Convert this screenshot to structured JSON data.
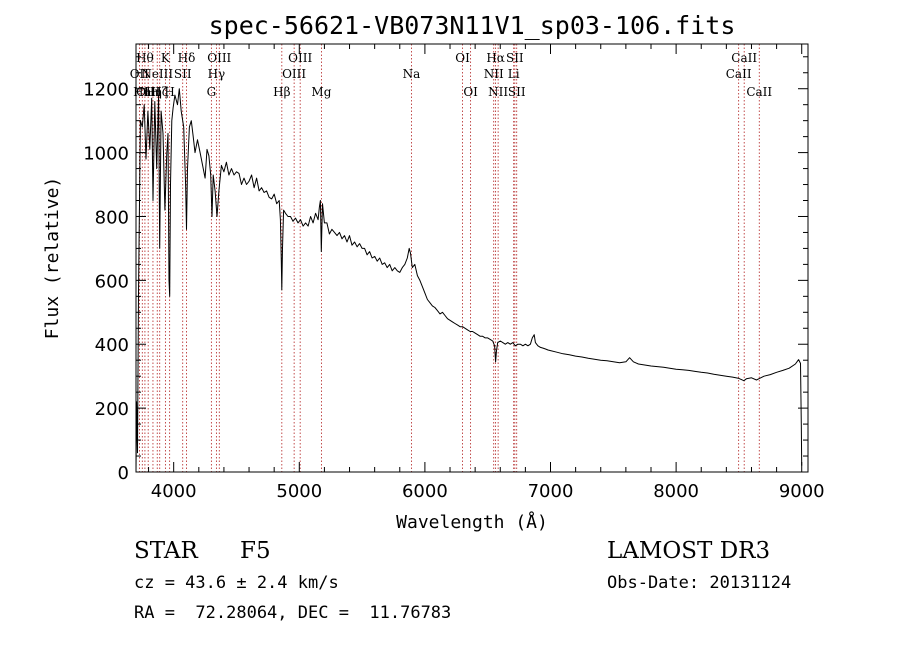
{
  "chart_data": {
    "type": "line",
    "title": "spec-56621-VB073N11V1_sp03-106.fits",
    "xlabel": "Wavelength (Å)",
    "ylabel": "Flux (relative)",
    "xlim": [
      3700,
      9050
    ],
    "ylim": [
      0,
      1340
    ],
    "x_ticks": [
      4000,
      5000,
      6000,
      7000,
      8000,
      9000
    ],
    "y_ticks": [
      0,
      200,
      400,
      600,
      800,
      1000,
      1200
    ],
    "x_tick_labels": [
      "4000",
      "5000",
      "6000",
      "7000",
      "8000",
      "9000"
    ],
    "y_tick_labels": [
      "0",
      "200",
      "400",
      "600",
      "800",
      "1000",
      "1200"
    ],
    "series": [
      {
        "name": "flux",
        "color": "#000000",
        "points": [
          [
            3700,
            0
          ],
          [
            3705,
            220
          ],
          [
            3712,
            60
          ],
          [
            3720,
            560
          ],
          [
            3735,
            1100
          ],
          [
            3750,
            1080
          ],
          [
            3765,
            1150
          ],
          [
            3780,
            980
          ],
          [
            3795,
            1130
          ],
          [
            3810,
            1010
          ],
          [
            3825,
            1170
          ],
          [
            3835,
            850
          ],
          [
            3850,
            1160
          ],
          [
            3865,
            950
          ],
          [
            3880,
            1180
          ],
          [
            3889,
            700
          ],
          [
            3900,
            1130
          ],
          [
            3915,
            1060
          ],
          [
            3930,
            820
          ],
          [
            3945,
            1000
          ],
          [
            3955,
            1060
          ],
          [
            3963,
            600
          ],
          [
            3968,
            550
          ],
          [
            3975,
            900
          ],
          [
            3985,
            1100
          ],
          [
            3995,
            1140
          ],
          [
            4010,
            1180
          ],
          [
            4030,
            1150
          ],
          [
            4045,
            1200
          ],
          [
            4060,
            1130
          ],
          [
            4080,
            1080
          ],
          [
            4095,
            900
          ],
          [
            4102,
            760
          ],
          [
            4110,
            950
          ],
          [
            4125,
            1080
          ],
          [
            4140,
            1100
          ],
          [
            4155,
            1050
          ],
          [
            4170,
            1000
          ],
          [
            4190,
            1040
          ],
          [
            4210,
            1000
          ],
          [
            4230,
            960
          ],
          [
            4250,
            920
          ],
          [
            4265,
            1010
          ],
          [
            4280,
            990
          ],
          [
            4295,
            930
          ],
          [
            4305,
            800
          ],
          [
            4315,
            930
          ],
          [
            4330,
            880
          ],
          [
            4345,
            800
          ],
          [
            4360,
            880
          ],
          [
            4380,
            960
          ],
          [
            4400,
            940
          ],
          [
            4420,
            970
          ],
          [
            4440,
            930
          ],
          [
            4460,
            950
          ],
          [
            4480,
            930
          ],
          [
            4500,
            940
          ],
          [
            4520,
            935
          ],
          [
            4540,
            900
          ],
          [
            4560,
            920
          ],
          [
            4580,
            900
          ],
          [
            4600,
            910
          ],
          [
            4620,
            930
          ],
          [
            4640,
            890
          ],
          [
            4660,
            920
          ],
          [
            4680,
            880
          ],
          [
            4700,
            890
          ],
          [
            4720,
            875
          ],
          [
            4740,
            880
          ],
          [
            4760,
            860
          ],
          [
            4780,
            855
          ],
          [
            4800,
            870
          ],
          [
            4820,
            840
          ],
          [
            4840,
            850
          ],
          [
            4850,
            790
          ],
          [
            4857,
            660
          ],
          [
            4861,
            570
          ],
          [
            4866,
            700
          ],
          [
            4875,
            820
          ],
          [
            4890,
            810
          ],
          [
            4910,
            800
          ],
          [
            4930,
            800
          ],
          [
            4950,
            785
          ],
          [
            4970,
            795
          ],
          [
            4990,
            780
          ],
          [
            5010,
            790
          ],
          [
            5030,
            770
          ],
          [
            5050,
            780
          ],
          [
            5070,
            770
          ],
          [
            5090,
            800
          ],
          [
            5110,
            780
          ],
          [
            5130,
            810
          ],
          [
            5150,
            790
          ],
          [
            5160,
            830
          ],
          [
            5168,
            850
          ],
          [
            5175,
            690
          ],
          [
            5185,
            840
          ],
          [
            5200,
            780
          ],
          [
            5220,
            780
          ],
          [
            5240,
            745
          ],
          [
            5260,
            760
          ],
          [
            5280,
            750
          ],
          [
            5300,
            740
          ],
          [
            5320,
            750
          ],
          [
            5340,
            730
          ],
          [
            5360,
            740
          ],
          [
            5380,
            720
          ],
          [
            5400,
            740
          ],
          [
            5420,
            710
          ],
          [
            5440,
            720
          ],
          [
            5460,
            705
          ],
          [
            5480,
            715
          ],
          [
            5500,
            700
          ],
          [
            5520,
            700
          ],
          [
            5540,
            680
          ],
          [
            5560,
            690
          ],
          [
            5580,
            670
          ],
          [
            5600,
            675
          ],
          [
            5620,
            660
          ],
          [
            5640,
            670
          ],
          [
            5660,
            650
          ],
          [
            5680,
            655
          ],
          [
            5700,
            640
          ],
          [
            5720,
            650
          ],
          [
            5740,
            630
          ],
          [
            5760,
            640
          ],
          [
            5780,
            630
          ],
          [
            5800,
            625
          ],
          [
            5820,
            640
          ],
          [
            5840,
            650
          ],
          [
            5860,
            670
          ],
          [
            5875,
            700
          ],
          [
            5885,
            685
          ],
          [
            5900,
            640
          ],
          [
            5920,
            650
          ],
          [
            5940,
            615
          ],
          [
            5960,
            600
          ],
          [
            5980,
            580
          ],
          [
            6000,
            560
          ],
          [
            6020,
            540
          ],
          [
            6040,
            530
          ],
          [
            6060,
            520
          ],
          [
            6080,
            515
          ],
          [
            6100,
            505
          ],
          [
            6120,
            495
          ],
          [
            6140,
            500
          ],
          [
            6160,
            490
          ],
          [
            6180,
            480
          ],
          [
            6200,
            475
          ],
          [
            6220,
            470
          ],
          [
            6240,
            465
          ],
          [
            6260,
            460
          ],
          [
            6280,
            455
          ],
          [
            6300,
            455
          ],
          [
            6320,
            450
          ],
          [
            6340,
            445
          ],
          [
            6360,
            440
          ],
          [
            6380,
            440
          ],
          [
            6400,
            435
          ],
          [
            6420,
            430
          ],
          [
            6440,
            425
          ],
          [
            6460,
            425
          ],
          [
            6480,
            420
          ],
          [
            6500,
            420
          ],
          [
            6520,
            415
          ],
          [
            6540,
            410
          ],
          [
            6555,
            395
          ],
          [
            6563,
            345
          ],
          [
            6570,
            380
          ],
          [
            6580,
            405
          ],
          [
            6600,
            410
          ],
          [
            6620,
            405
          ],
          [
            6640,
            400
          ],
          [
            6660,
            405
          ],
          [
            6680,
            400
          ],
          [
            6700,
            405
          ],
          [
            6720,
            395
          ],
          [
            6740,
            400
          ],
          [
            6760,
            400
          ],
          [
            6780,
            395
          ],
          [
            6800,
            400
          ],
          [
            6820,
            395
          ],
          [
            6840,
            400
          ],
          [
            6855,
            420
          ],
          [
            6870,
            430
          ],
          [
            6880,
            405
          ],
          [
            6900,
            395
          ],
          [
            6920,
            390
          ],
          [
            6940,
            388
          ],
          [
            6960,
            385
          ],
          [
            6980,
            382
          ],
          [
            7000,
            380
          ],
          [
            7050,
            375
          ],
          [
            7100,
            370
          ],
          [
            7150,
            367
          ],
          [
            7200,
            363
          ],
          [
            7250,
            360
          ],
          [
            7300,
            356
          ],
          [
            7350,
            353
          ],
          [
            7400,
            350
          ],
          [
            7450,
            348
          ],
          [
            7500,
            345
          ],
          [
            7550,
            342
          ],
          [
            7600,
            345
          ],
          [
            7630,
            358
          ],
          [
            7660,
            345
          ],
          [
            7700,
            338
          ],
          [
            7750,
            335
          ],
          [
            7800,
            332
          ],
          [
            7850,
            330
          ],
          [
            7900,
            328
          ],
          [
            7950,
            325
          ],
          [
            8000,
            322
          ],
          [
            8050,
            320
          ],
          [
            8100,
            318
          ],
          [
            8150,
            315
          ],
          [
            8200,
            312
          ],
          [
            8250,
            310
          ],
          [
            8300,
            306
          ],
          [
            8350,
            303
          ],
          [
            8400,
            300
          ],
          [
            8450,
            297
          ],
          [
            8500,
            293
          ],
          [
            8540,
            286
          ],
          [
            8560,
            292
          ],
          [
            8600,
            295
          ],
          [
            8640,
            288
          ],
          [
            8660,
            292
          ],
          [
            8700,
            300
          ],
          [
            8750,
            305
          ],
          [
            8800,
            312
          ],
          [
            8850,
            318
          ],
          [
            8900,
            325
          ],
          [
            8950,
            338
          ],
          [
            8975,
            352
          ],
          [
            8990,
            340
          ],
          [
            8997,
            150
          ],
          [
            9000,
            20
          ]
        ]
      }
    ],
    "lines": [
      {
        "wavelength": 3727,
        "label": "OII",
        "row": 2
      },
      {
        "wavelength": 3750,
        "label": "Hn",
        "row": 3
      },
      {
        "wavelength": 3771,
        "label": "Hθ",
        "row": 1
      },
      {
        "wavelength": 3797,
        "label": "OIII",
        "row": 3
      },
      {
        "wavelength": 3835,
        "label": "Hη",
        "row": 3
      },
      {
        "wavelength": 3869,
        "label": "NeIII",
        "row": 2
      },
      {
        "wavelength": 3889,
        "label": "Hζ",
        "row": 3
      },
      {
        "wavelength": 3934,
        "label": "K",
        "row": 1
      },
      {
        "wavelength": 3968,
        "label": "H",
        "row": 3
      },
      {
        "wavelength": 4072,
        "label": "SII",
        "row": 2
      },
      {
        "wavelength": 4102,
        "label": "Hδ",
        "row": 1
      },
      {
        "wavelength": 4300,
        "label": "G",
        "row": 3
      },
      {
        "wavelength": 4340,
        "label": "Hγ",
        "row": 2
      },
      {
        "wavelength": 4363,
        "label": "OIII",
        "row": 1
      },
      {
        "wavelength": 4861,
        "label": "Hβ",
        "row": 3
      },
      {
        "wavelength": 4959,
        "label": "OIII",
        "row": 2
      },
      {
        "wavelength": 5007,
        "label": "OIII",
        "row": 1
      },
      {
        "wavelength": 5176,
        "label": "Mg",
        "row": 3
      },
      {
        "wavelength": 5893,
        "label": "Na",
        "row": 2
      },
      {
        "wavelength": 6300,
        "label": "OI",
        "row": 1
      },
      {
        "wavelength": 6364,
        "label": "OI",
        "row": 3
      },
      {
        "wavelength": 6548,
        "label": "NII",
        "row": 2
      },
      {
        "wavelength": 6563,
        "label": "Hα",
        "row": 1
      },
      {
        "wavelength": 6583,
        "label": "NII",
        "row": 3
      },
      {
        "wavelength": 6707,
        "label": "Li",
        "row": 2
      },
      {
        "wavelength": 6716,
        "label": "SII",
        "row": 1
      },
      {
        "wavelength": 6731,
        "label": "SII",
        "row": 3
      },
      {
        "wavelength": 8498,
        "label": "CaII",
        "row": 2
      },
      {
        "wavelength": 8542,
        "label": "CaII",
        "row": 1
      },
      {
        "wavelength": 8662,
        "label": "CaII",
        "row": 3
      }
    ],
    "annotation_line_color": "#b22222",
    "grid": false,
    "legend": "none"
  },
  "info": {
    "object_class": "STAR",
    "subclass": "F5",
    "survey": "LAMOST DR3",
    "redshift_text": "cz = 43.6 ± 2.4 km/s",
    "obs_date_text": "Obs-Date: 20131124",
    "coords_text": "RA =  72.28064, DEC =  11.76783"
  }
}
